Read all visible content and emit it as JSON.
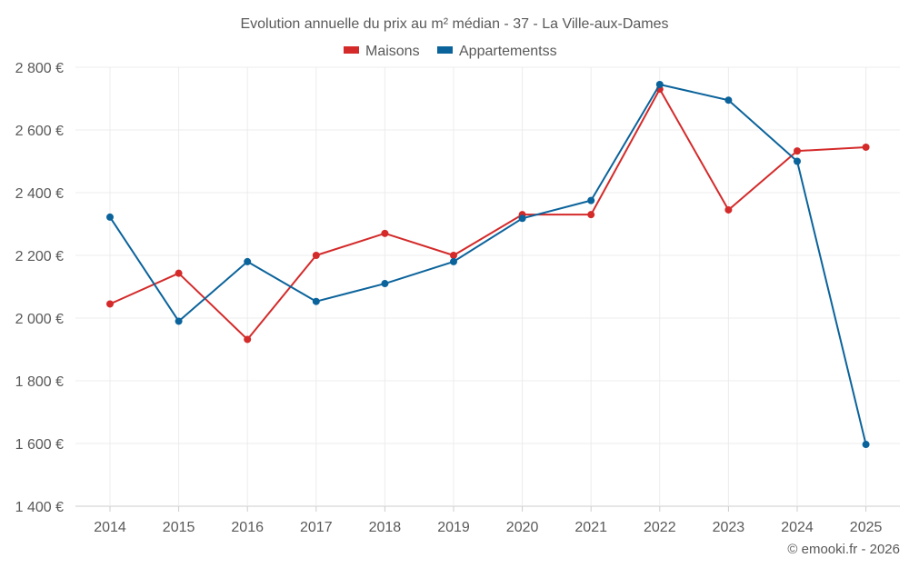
{
  "chart_data": {
    "type": "line",
    "title": "Evolution annuelle du prix au m² médian - 37 - La Ville-aux-Dames",
    "xlabel": "",
    "ylabel": "",
    "categories": [
      "2014",
      "2015",
      "2016",
      "2017",
      "2018",
      "2019",
      "2020",
      "2021",
      "2022",
      "2023",
      "2024",
      "2025"
    ],
    "ylim": [
      1400,
      2800
    ],
    "yticks": [
      1400,
      1600,
      1800,
      2000,
      2200,
      2400,
      2600,
      2800
    ],
    "ytick_labels": [
      "1 400 €",
      "1 600 €",
      "1 800 €",
      "2 000 €",
      "2 200 €",
      "2 400 €",
      "2 600 €",
      "2 800 €"
    ],
    "grid": true,
    "legend_position": "top-center",
    "series": [
      {
        "name": "Maisons",
        "color": "#d42a2a",
        "values": [
          2045,
          2143,
          1932,
          2200,
          2270,
          2200,
          2330,
          2330,
          2730,
          2345,
          2533,
          2545
        ]
      },
      {
        "name": "Appartementss",
        "color": "#0b639b",
        "values": [
          2322,
          1990,
          2180,
          2053,
          2110,
          2180,
          2318,
          2375,
          2745,
          2695,
          2500,
          1597
        ]
      }
    ]
  },
  "credit": "© emooki.fr - 2026"
}
